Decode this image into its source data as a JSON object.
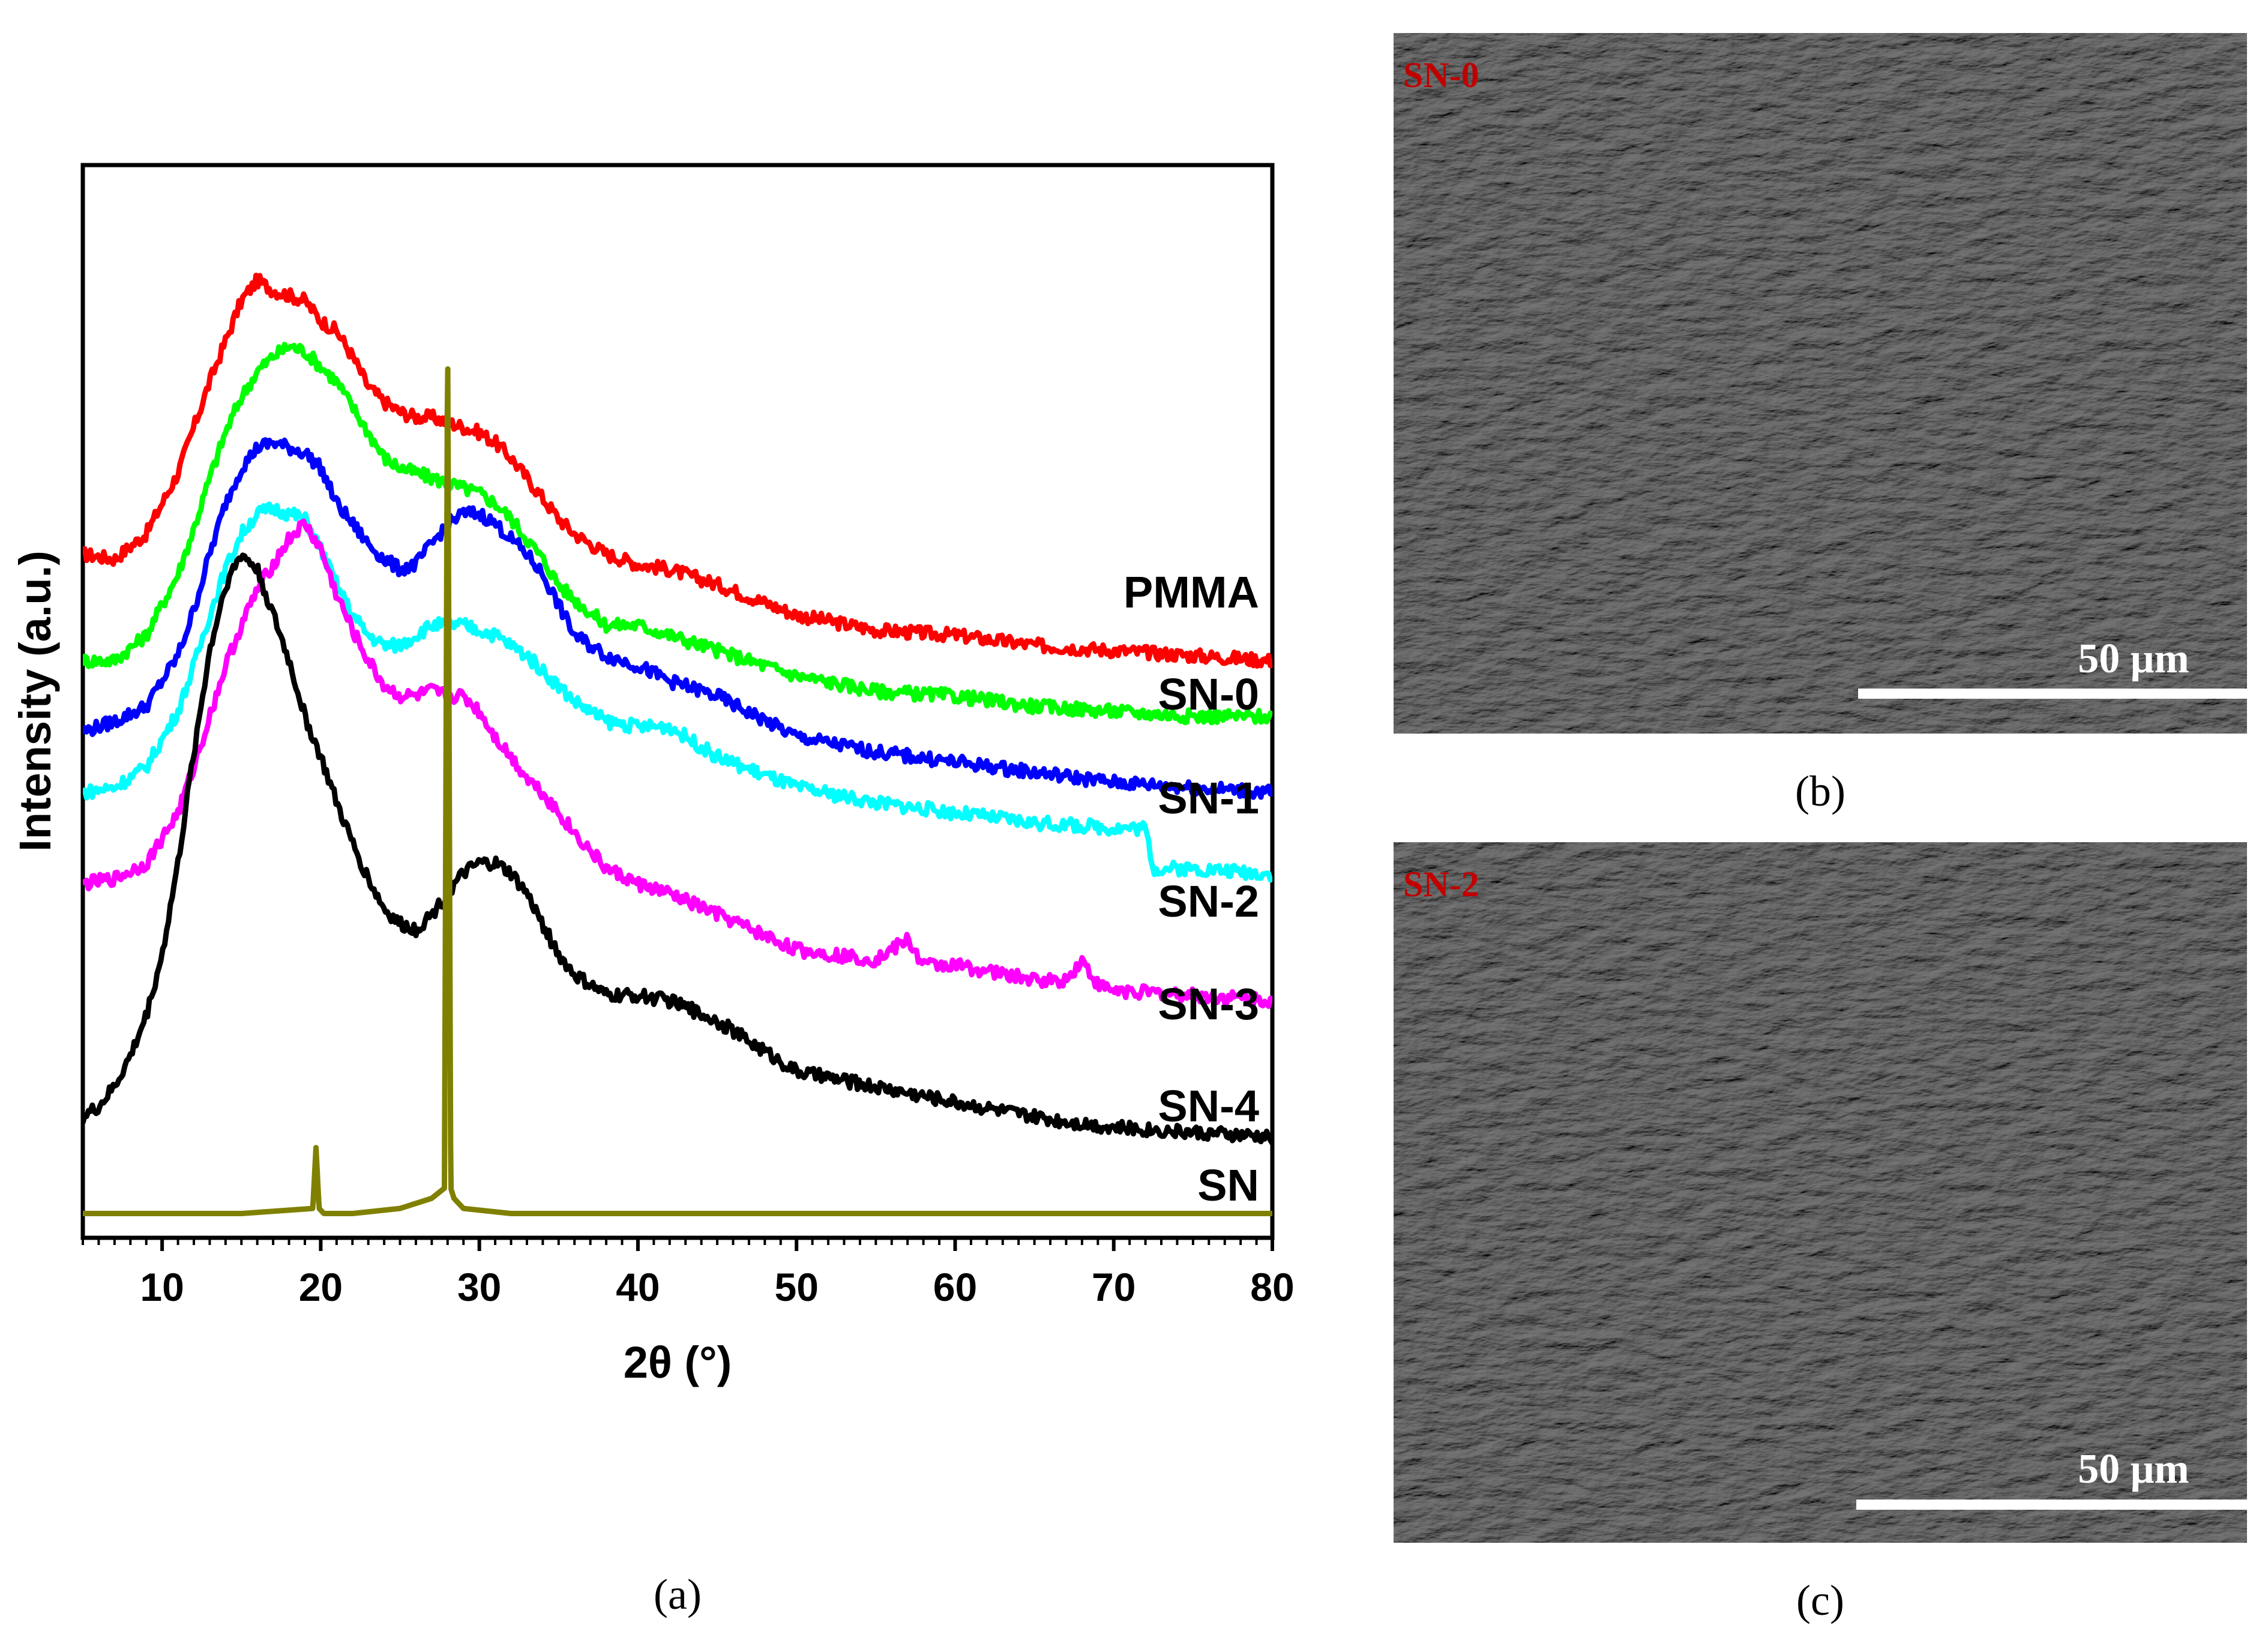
{
  "chart_data": {
    "type": "line",
    "xlabel": "2θ (°)",
    "ylabel": "Intensity (a.u.)",
    "xlim": [
      5,
      80
    ],
    "ylim": [
      0,
      100
    ],
    "xticks": [
      10,
      20,
      30,
      40,
      50,
      60,
      70,
      80
    ],
    "yticks_shown": false,
    "grid": false,
    "legend": "inline labels at right end of each curve",
    "panel_label": "(a)",
    "series": [
      {
        "name": "PMMA",
        "color": "#ff0000",
        "x": [
          5,
          7,
          9,
          11,
          12,
          13,
          14,
          15,
          16,
          17,
          18,
          19,
          20,
          21,
          22,
          23,
          24,
          25,
          26,
          27,
          28,
          29,
          30,
          31,
          32,
          33,
          34,
          35,
          36,
          38,
          40,
          42,
          45,
          50,
          55,
          60,
          65,
          70,
          75,
          80
        ],
        "y": [
          65.5,
          65.0,
          67.5,
          73.5,
          78.0,
          82.5,
          86.5,
          90.5,
          92.5,
          91.5,
          91.0,
          90.5,
          88.5,
          87.5,
          85.0,
          82.0,
          80.5,
          79.5,
          79.0,
          79.0,
          78.5,
          78.0,
          77.5,
          76.5,
          75.0,
          73.0,
          71.0,
          69.0,
          67.5,
          65.5,
          64.5,
          64.0,
          62.5,
          59.5,
          58.0,
          57.5,
          56.5,
          56.0,
          55.5,
          55.0
        ]
      },
      {
        "name": "SN-0",
        "color": "#00ff00",
        "x": [
          5,
          7,
          9,
          11,
          12,
          13,
          14,
          15,
          16,
          17,
          18,
          19,
          20,
          21,
          22,
          23,
          24,
          25,
          26,
          27,
          28,
          29,
          30,
          31,
          32,
          33,
          34,
          35,
          36,
          38,
          40,
          42,
          45,
          50,
          55,
          60,
          65,
          70,
          75,
          80
        ],
        "y": [
          55.0,
          55.0,
          57.5,
          63.5,
          68.0,
          73.0,
          77.5,
          81.0,
          83.5,
          85.0,
          86.0,
          85.5,
          84.0,
          82.5,
          80.0,
          77.5,
          75.0,
          74.0,
          73.5,
          73.0,
          72.5,
          72.0,
          71.5,
          70.5,
          69.0,
          67.0,
          65.0,
          62.5,
          61.0,
          58.5,
          58.5,
          57.5,
          56.0,
          53.5,
          52.0,
          51.5,
          50.5,
          50.0,
          49.5,
          49.5
        ]
      },
      {
        "name": "SN-1",
        "color": "#0000ff",
        "x": [
          5,
          7,
          9,
          11,
          12,
          13,
          14,
          15,
          16,
          17,
          18,
          19,
          20,
          21,
          22,
          23,
          24,
          25,
          26,
          27,
          28,
          29,
          30,
          31,
          32,
          33,
          34,
          35,
          36,
          38,
          40,
          42,
          45,
          50,
          55,
          60,
          65,
          70,
          75,
          80
        ],
        "y": [
          48.0,
          49.0,
          50.5,
          55.5,
          60.0,
          65.5,
          70.5,
          74.0,
          76.0,
          76.5,
          76.0,
          75.5,
          74.0,
          70.5,
          68.5,
          66.5,
          65.0,
          64.0,
          64.5,
          66.5,
          68.5,
          69.5,
          69.5,
          68.5,
          67.0,
          65.5,
          63.5,
          60.5,
          57.5,
          55.5,
          54.5,
          53.0,
          51.5,
          47.5,
          46.0,
          45.0,
          44.0,
          43.0,
          42.5,
          42.0
        ]
      },
      {
        "name": "SN-2",
        "color": "#00ffff",
        "x": [
          5,
          7,
          9,
          11,
          12,
          13,
          14,
          15,
          16,
          17,
          18,
          19,
          20,
          21,
          22,
          23,
          24,
          25,
          26,
          27,
          28,
          29,
          30,
          31,
          32,
          33,
          34,
          35,
          36,
          38,
          40,
          42,
          45,
          50,
          55,
          60,
          65,
          70,
          72,
          72.5,
          75,
          80
        ],
        "y": [
          42.0,
          42.5,
          44.5,
          50.0,
          54.5,
          59.5,
          64.0,
          67.5,
          69.5,
          70.0,
          69.5,
          69.0,
          66.0,
          62.5,
          59.5,
          57.5,
          56.5,
          56.5,
          57.5,
          58.5,
          58.5,
          58.5,
          58.0,
          57.5,
          56.5,
          55.5,
          54.0,
          52.5,
          51.0,
          49.0,
          48.5,
          48.5,
          45.5,
          42.5,
          41.0,
          40.0,
          39.0,
          38.5,
          38.5,
          34.5,
          34.5,
          34.0
        ]
      },
      {
        "name": "SN-3",
        "color": "#ff00ff",
        "x": [
          5,
          7,
          9,
          11,
          12,
          13,
          14,
          15,
          16,
          17,
          18,
          19,
          20,
          21,
          22,
          23,
          24,
          25,
          26,
          27,
          28,
          29,
          30,
          31,
          32,
          33,
          34,
          35,
          36,
          38,
          40,
          42,
          45,
          50,
          55,
          57,
          58,
          60,
          65,
          67,
          68,
          69,
          70,
          75,
          80
        ],
        "y": [
          33.0,
          33.5,
          35.0,
          40.0,
          44.5,
          49.5,
          54.5,
          58.5,
          62.0,
          64.5,
          67.0,
          68.5,
          66.0,
          61.5,
          58.0,
          55.0,
          52.5,
          51.5,
          51.5,
          52.0,
          51.5,
          51.5,
          50.0,
          47.5,
          45.5,
          43.5,
          42.0,
          40.0,
          38.0,
          34.5,
          33.0,
          32.0,
          30.0,
          26.5,
          25.5,
          27.5,
          25.0,
          25.0,
          23.5,
          23.5,
          25.5,
          23.0,
          22.5,
          22.0,
          21.5
        ]
      },
      {
        "name": "SN-4",
        "color": "#000000",
        "x": [
          5,
          6,
          7,
          8,
          9,
          10,
          11,
          12,
          13,
          14,
          15,
          16,
          17,
          18,
          19,
          20,
          21,
          22,
          23,
          24,
          25,
          26,
          27,
          28,
          29,
          30,
          31,
          32,
          33,
          34,
          35,
          36,
          38,
          40,
          42,
          45,
          50,
          55,
          60,
          65,
          70,
          75,
          80
        ],
        "y": [
          10.0,
          11.0,
          13.0,
          16.0,
          20.0,
          26.0,
          35.0,
          46.0,
          56.0,
          62.5,
          65.5,
          64.0,
          59.5,
          55.0,
          49.5,
          45.5,
          41.0,
          37.0,
          33.5,
          30.5,
          29.0,
          28.5,
          30.0,
          32.0,
          34.0,
          35.0,
          35.0,
          34.0,
          32.0,
          29.0,
          26.0,
          24.0,
          22.0,
          22.0,
          21.5,
          19.5,
          14.5,
          13.0,
          11.5,
          10.0,
          9.0,
          8.5,
          8.0
        ]
      },
      {
        "name": "SN",
        "color": "#808000",
        "x": [
          5,
          10,
          15,
          19.5,
          19.7,
          19.9,
          20.2,
          22,
          25,
          27,
          27.8,
          28.0,
          28.2,
          28.4,
          29,
          32,
          40,
          50,
          60,
          70,
          80
        ],
        "y": [
          0.5,
          0.5,
          0.5,
          1.0,
          7.0,
          1.0,
          0.5,
          0.5,
          1.0,
          2.0,
          3.0,
          88.0,
          3.0,
          2.0,
          1.0,
          0.5,
          0.5,
          0.5,
          0.5,
          0.5,
          0.5
        ]
      }
    ]
  },
  "images": [
    {
      "id": "b",
      "caption": "(b)",
      "sample_label": "SN-0",
      "scale_bar_label": "50 μm"
    },
    {
      "id": "c",
      "caption": "(c)",
      "sample_label": "SN-2",
      "scale_bar_label": "50 μm"
    }
  ],
  "colors": {
    "sem_background": "#4a4a4a",
    "sem_label": "#c00000",
    "scale_bar": "#ffffff",
    "axis": "#000000"
  }
}
